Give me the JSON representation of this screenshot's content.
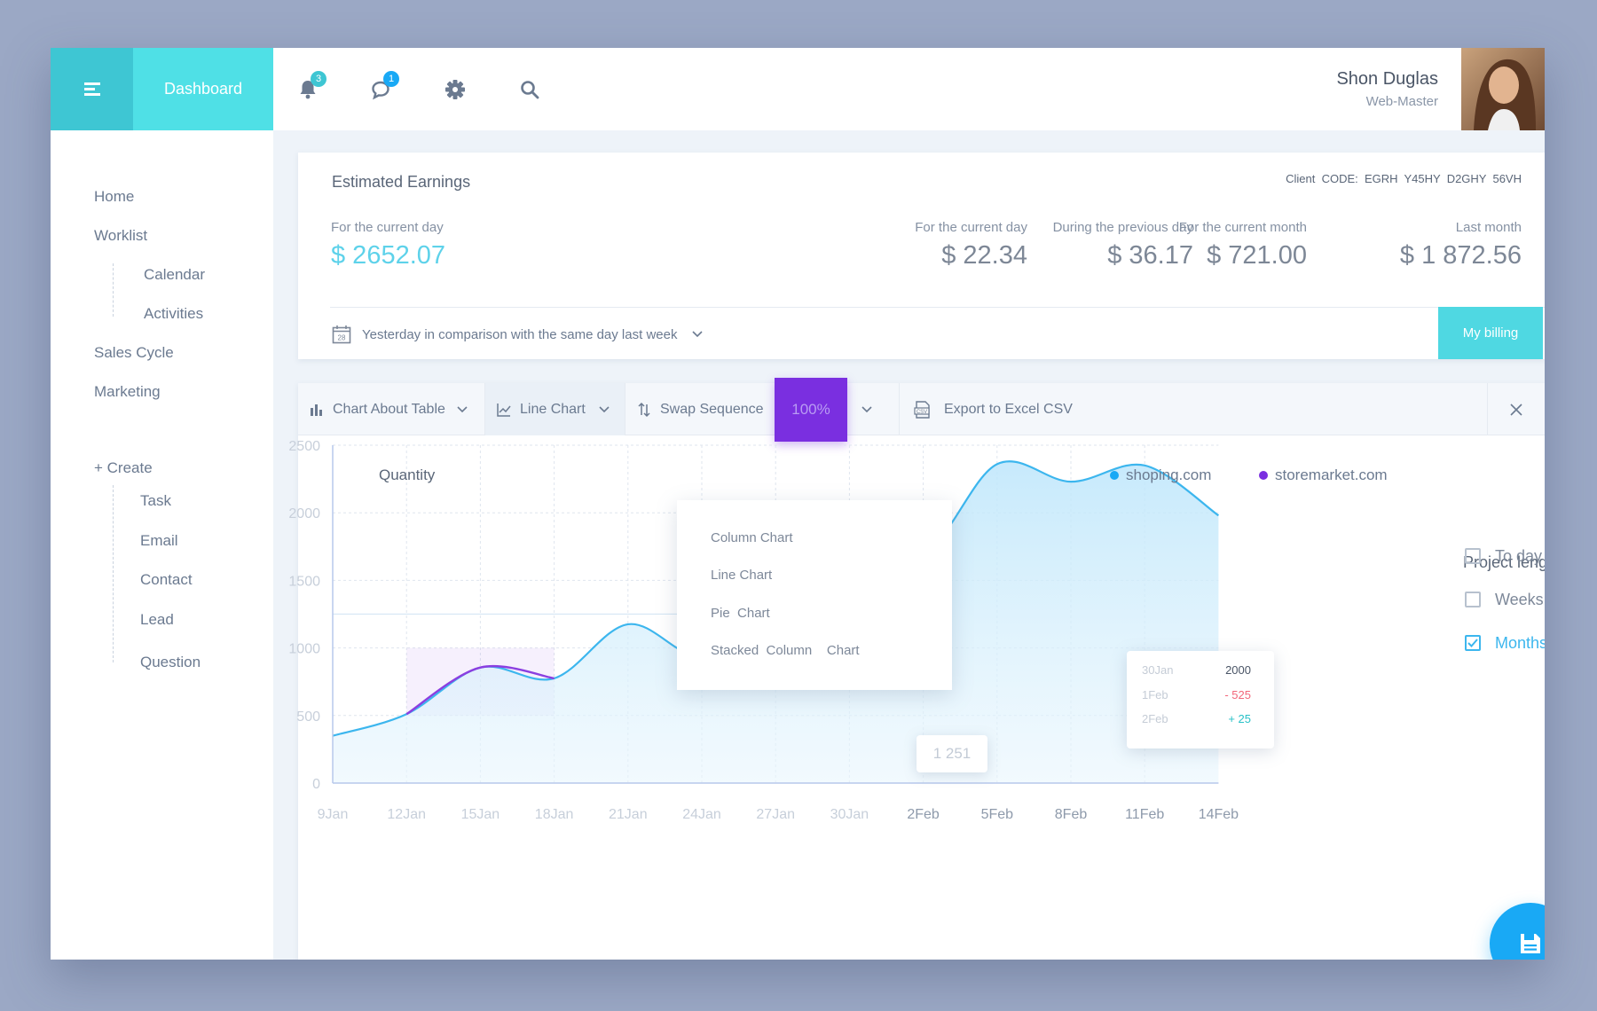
{
  "header": {
    "dashboard_label": "Dashboard",
    "notifications_count": "3",
    "messages_count": "1",
    "user_name": "Shon Duglas",
    "user_role": "Web-Master"
  },
  "sidebar": {
    "items": [
      "Home",
      "Worklist",
      "Calendar",
      "Activities",
      "Sales Cycle",
      "Marketing"
    ],
    "create_label": "+ Create",
    "create_items": [
      "Task",
      "Email",
      "Contact",
      "Lead",
      "Question"
    ]
  },
  "earnings": {
    "title": "Estimated Earnings",
    "client_code": "Client  CODE:  EGRH  Y45HY  D2GHY  56VH",
    "stats": [
      {
        "label": "For the current day",
        "value": "$ 2652.07"
      },
      {
        "label": "For the current day",
        "value": "$ 22.34"
      },
      {
        "label": "During the previous day",
        "value": "$ 36.17"
      },
      {
        "label": "For the current month",
        "value": "$ 721.00"
      },
      {
        "label": "Last month",
        "value": "$ 1 872.56"
      }
    ],
    "calendar_day": "28",
    "comparison": "Yesterday in comparison with the same day last week",
    "billing_label": "My billing"
  },
  "toolbar": {
    "chart_about_table": "Chart About Table",
    "line_chart": "Line Chart",
    "swap_sequence": "Swap Sequence",
    "percent": "100%",
    "export": "Export to Excel CSV",
    "csv_badge": "CSV"
  },
  "dropdown": {
    "options": [
      "Column Chart",
      "Line Chart",
      "Pie  Chart",
      "Stacked  Column    Chart"
    ]
  },
  "tooltip_point": "1 251",
  "tooltip_compare": {
    "rows": [
      {
        "date": "30Jan",
        "value": "2000"
      },
      {
        "date": "1Feb",
        "value": "- 525"
      },
      {
        "date": "2Feb",
        "value": "+ 25"
      }
    ]
  },
  "project_length": {
    "title": "Project lenght",
    "options": [
      {
        "label": "To day",
        "checked": false
      },
      {
        "label": "Weeks",
        "checked": false
      },
      {
        "label": "Months",
        "checked": true
      }
    ]
  },
  "colors": {
    "teal": "#3ec6d3",
    "purple": "#7a2fe0",
    "blue": "#19a9f5",
    "line": "#3cb6ee"
  },
  "chart_data": {
    "type": "area",
    "ylabel": "Quantity",
    "ylim": [
      0,
      2500
    ],
    "yticks": [
      "0",
      "500",
      "1000",
      "1500",
      "2000",
      "2500"
    ],
    "categories": [
      "9Jan",
      "12Jan",
      "15Jan",
      "18Jan",
      "21Jan",
      "24Jan",
      "27Jan",
      "30Jan",
      "2Feb",
      "5Feb",
      "8Feb",
      "11Feb",
      "14Feb"
    ],
    "legend": [
      "shoping.com",
      "storemarket.com"
    ],
    "series": [
      {
        "name": "shoping.com",
        "color": "#3cb6ee",
        "points": [
          [
            0,
            350
          ],
          [
            1,
            510
          ],
          [
            2,
            855
          ],
          [
            3,
            775
          ],
          [
            4,
            1175
          ],
          [
            5,
            935
          ],
          [
            6,
            1251
          ],
          [
            7,
            2060
          ],
          [
            8,
            1710
          ],
          [
            9,
            2360
          ],
          [
            10,
            2230
          ],
          [
            11,
            2350
          ],
          [
            12,
            1980
          ]
        ]
      }
    ],
    "highlights": [
      {
        "name": "storemarket.com",
        "color": "#8b3fe0",
        "x_range": [
          1,
          3
        ],
        "y_range": [
          500,
          1000
        ]
      },
      {
        "name": "storemarket.com",
        "color": "#8b3fe0",
        "x_range": [
          7,
          8
        ],
        "y_range": [
          1500,
          2000
        ]
      }
    ],
    "grid": true,
    "legend_position": "top-right"
  }
}
